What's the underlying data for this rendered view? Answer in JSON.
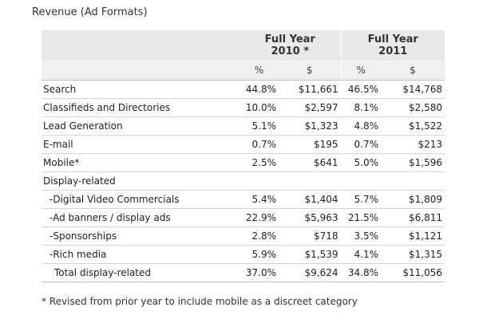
{
  "title": "Revenue (Ad Formats)",
  "headers": {
    "col1": "Full Year\n2010 *",
    "col2": "Full Year\n2011",
    "pct": "%",
    "usd": "$"
  },
  "rows": [
    {
      "label": "Search",
      "pct2010": "44.8%",
      "usd2010": "$11,661",
      "pct2011": "46.5%",
      "usd2011": "$14,768"
    },
    {
      "label": "Classifieds and Directories",
      "pct2010": "10.0%",
      "usd2010": "$2,597",
      "pct2011": "8.1%",
      "usd2011": "$2,580"
    },
    {
      "label": "Lead Generation",
      "pct2010": "5.1%",
      "usd2010": "$1,323",
      "pct2011": "4.8%",
      "usd2011": "$1,522"
    },
    {
      "label": "E-mail",
      "pct2010": "0.7%",
      "usd2010": "$195",
      "pct2011": "0.7%",
      "usd2011": "$213"
    },
    {
      "label": "Mobile*",
      "pct2010": "2.5%",
      "usd2010": "$641",
      "pct2011": "5.0%",
      "usd2011": "$1,596"
    },
    {
      "label": "Display-related",
      "pct2010": "",
      "usd2010": "",
      "pct2011": "",
      "usd2011": ""
    },
    {
      "label": "-Digital Video Commercials",
      "pct2010": "5.4%",
      "usd2010": "$1,404",
      "pct2011": "5.7%",
      "usd2011": "$1,809"
    },
    {
      "label": "-Ad banners / display ads",
      "pct2010": "22.9%",
      "usd2010": "$5,963",
      "pct2011": "21.5%",
      "usd2011": "$6,811"
    },
    {
      "label": "-Sponsorships",
      "pct2010": "2.8%",
      "usd2010": "$718",
      "pct2011": "3.5%",
      "usd2011": "$1,121"
    },
    {
      "label": "-Rich media",
      "pct2010": "5.9%",
      "usd2010": "$1,539",
      "pct2011": "4.1%",
      "usd2011": "$1,315"
    },
    {
      "label": "Total display-related",
      "pct2010": "37.0%",
      "usd2010": "$9,624",
      "pct2011": "34.8%",
      "usd2011": "$11,056"
    }
  ],
  "footnote": "* Revised from prior year to include mobile as a discreet category"
}
